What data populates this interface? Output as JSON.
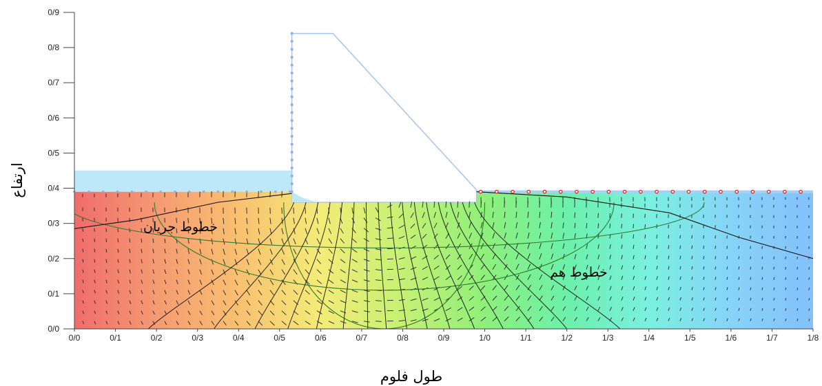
{
  "chart_data": {
    "type": "heatmap",
    "title": "",
    "xlabel": "طول فلوم",
    "ylabel": "ارتفاع",
    "xlim": [
      0,
      1.8
    ],
    "ylim": [
      0,
      0.9
    ],
    "x_ticks": [
      "0/0",
      "0/1",
      "0/2",
      "0/3",
      "0/4",
      "0/5",
      "0/6",
      "0/7",
      "0/8",
      "0/9",
      "1/0",
      "1/1",
      "1/2",
      "1/3",
      "1/4",
      "1/5",
      "1/6",
      "1/7",
      "1/8"
    ],
    "y_ticks": [
      "0/0",
      "0/1",
      "0/2",
      "0/3",
      "0/4",
      "0/5",
      "0/6",
      "0/7",
      "0/8",
      "0/9"
    ],
    "annotations": {
      "flow_lines": "خطوط جریان",
      "equipotential_lines": "خطوط هم"
    },
    "grid": false,
    "legend": "none",
    "colormap": [
      "#f06c6c",
      "#f59a72",
      "#f9c070",
      "#f4ec78",
      "#c6f074",
      "#8ef07a",
      "#6cf0aa",
      "#7af0e0",
      "#86d4f8",
      "#84c0fa"
    ],
    "geometry": {
      "upstream_water_level": 0.45,
      "soil_surface": 0.39,
      "dam_base": 0.36,
      "dam_x": [
        0.53,
        0.98
      ],
      "dam_crest": [
        0.53,
        0.63
      ],
      "dam_top": 0.84
    },
    "flow_line_ellipses": [
      {
        "cx": 0.755,
        "b": 0.36,
        "a": 0.245
      },
      {
        "cx": 0.755,
        "b": 0.25,
        "a": 0.56
      },
      {
        "cx": 0.755,
        "b": 0.13,
        "a": 0.78
      }
    ],
    "phreatic_line": [
      [
        0,
        0.285
      ],
      [
        0.15,
        0.31
      ],
      [
        0.35,
        0.36
      ],
      [
        0.53,
        0.385
      ]
    ],
    "downstream_line": [
      [
        0.98,
        0.39
      ],
      [
        1.2,
        0.375
      ],
      [
        1.45,
        0.33
      ],
      [
        1.62,
        0.26
      ],
      [
        1.8,
        0.2
      ]
    ],
    "equipotential_bottom_x": [
      0.18,
      0.34,
      0.44,
      0.52,
      0.59,
      0.655,
      0.715,
      0.76,
      0.81,
      0.86,
      0.915,
      0.975,
      1.045,
      1.12,
      1.2,
      1.33
    ]
  },
  "colors": {
    "water": "#bde8f8",
    "dam_outline": "#a8c8ee",
    "flow_line": "#2f7a2f",
    "equipotential_line": "#111111",
    "node_marker": "#cc2222"
  }
}
